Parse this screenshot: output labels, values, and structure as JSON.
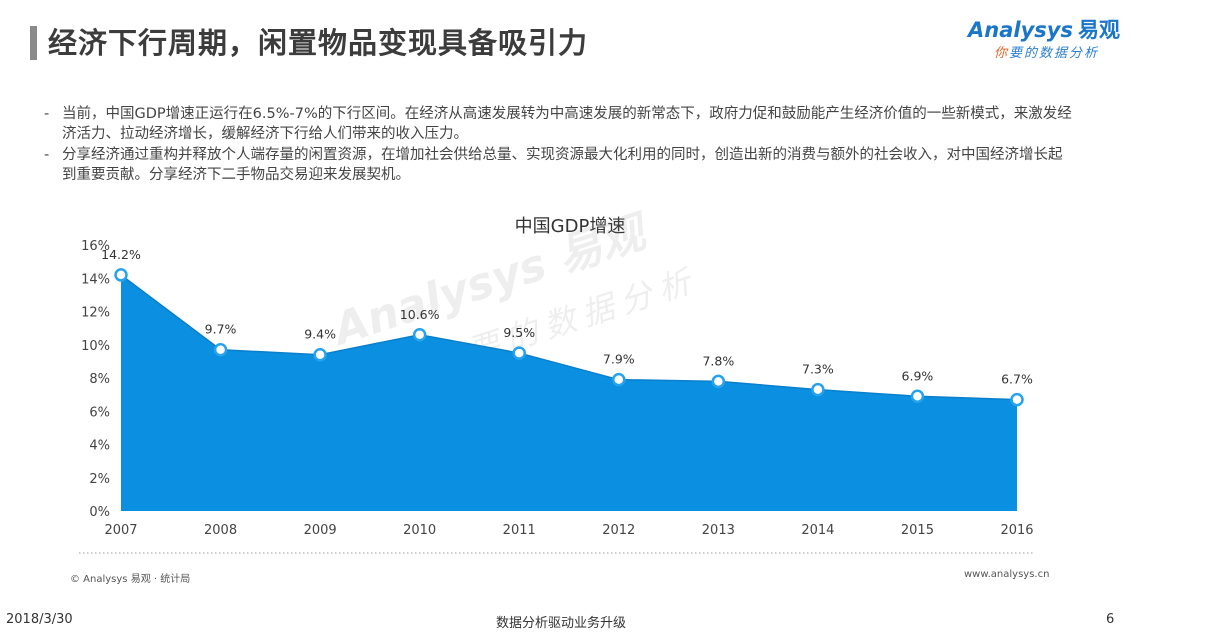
{
  "header": {
    "title": "经济下行周期，闲置物品变现具备吸引力",
    "logo_main": "Analysys",
    "logo_cn": "易观",
    "logo_tagline_first": "你",
    "logo_tagline_rest": "要的数据分析"
  },
  "bullets": [
    {
      "dash": "-",
      "text": "当前，中国GDP增速正运行在6.5%-7%的下行区间。在经济从高速发展转为中高速发展的新常态下，政府力促和鼓励能产生经济价值的一些新模式，来激发经济活力、拉动经济增长，缓解经济下行给人们带来的收入压力。"
    },
    {
      "dash": "-",
      "text": "分享经济通过重构并释放个人端存量的闲置资源，在增加社会供给总量、实现资源最大化利用的同时，创造出新的消费与额外的社会收入，对中国经济增长起到重要贡献。分享经济下二手物品交易迎来发展契机。"
    }
  ],
  "chart_data": {
    "type": "area",
    "title": "中国GDP增速",
    "x": [
      "2007",
      "2008",
      "2009",
      "2010",
      "2011",
      "2012",
      "2013",
      "2014",
      "2015",
      "2016"
    ],
    "values": [
      14.2,
      9.7,
      9.4,
      10.6,
      9.5,
      7.9,
      7.8,
      7.3,
      6.9,
      6.7
    ],
    "data_labels": [
      "14.2%",
      "9.7%",
      "9.4%",
      "10.6%",
      "9.5%",
      "7.9%",
      "7.8%",
      "7.3%",
      "6.9%",
      "6.7%"
    ],
    "y_ticks": [
      "0%",
      "2%",
      "4%",
      "6%",
      "8%",
      "10%",
      "12%",
      "14%",
      "16%"
    ],
    "ylim": [
      0,
      16
    ],
    "grid": false,
    "colors": {
      "fill": "#0b8fe0",
      "marker": "#27a3ee",
      "marker_fill": "#ffffff"
    }
  },
  "watermark": {
    "main": "Analysys 易观",
    "sub": "你要的数据分析"
  },
  "footer": {
    "source": "© Analysys 易观 · 统计局",
    "site": "www.analysys.cn",
    "date": "2018/3/30",
    "center": "数据分析驱动业务升级",
    "page": "6"
  }
}
